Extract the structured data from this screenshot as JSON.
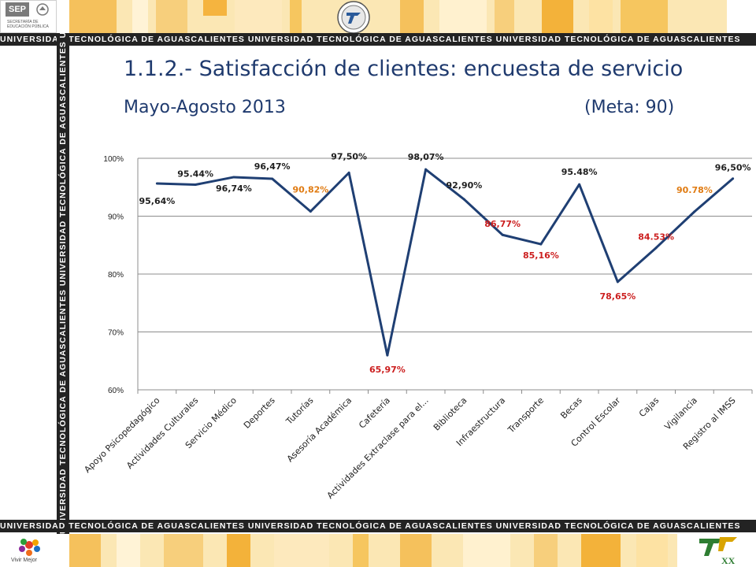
{
  "header": {
    "sep_label": "SEP",
    "sep_subtitle": "SECRETARÍA DE EDUCACIÓN PÚBLICA",
    "strip_text": "UNIVERSIDAD TECNOLÓGICA DE AGUASCALIENTES",
    "top_strip_repeated": "UNIVERSIDAD TECNOLÓGICA DE AGUASCALIENTES     UNIVERSIDAD TECNOLÓGICA DE AGUASCALIENTES     UNIVERSIDAD TECNOLÓGICA DE AGUASCALIENTES"
  },
  "slide": {
    "title": "1.1.2.- Satisfacción de clientes: encuesta de servicio",
    "subtitle": "Mayo-Agosto  2013",
    "goal": "(Meta: 90)"
  },
  "footer": {
    "vivir_label": "Vivir Mejor",
    "xx_label": "XX"
  },
  "colors": {
    "line": "#1f3f73",
    "text_dark": "#1f1f1f",
    "text_orange": "#e07b12",
    "text_red": "#cc1f1f",
    "title": "#1f3a6e",
    "strip": "#232323"
  },
  "chart_data": {
    "type": "line",
    "categories": [
      "Apoyo Psicopedagógico",
      "Actividades Culturales",
      "Servicio Médico",
      "Deportes",
      "Tutorías",
      "Asesoría Académica",
      "Cafetería",
      "Actividades Extraclase para el...",
      "Biblioteca",
      "Infraestructura",
      "Transporte",
      "Becas",
      "Control Escolar",
      "Cajas",
      "Vigilancia",
      "Registro al IMSS"
    ],
    "values": [
      95.64,
      95.44,
      96.74,
      96.47,
      90.82,
      97.5,
      65.97,
      98.07,
      92.9,
      86.77,
      85.16,
      95.48,
      78.65,
      84.53,
      90.78,
      96.5
    ],
    "labels": [
      "95,64%",
      "95.44%",
      "96,74%",
      "96,47%",
      "90,82%",
      "97,50%",
      "65,97%",
      "98,07%",
      "92,90%",
      "86,77%",
      "85,16%",
      "95.48%",
      "78,65%",
      "84.53%",
      "90.78%",
      "96,50%"
    ],
    "label_colors": [
      "dark",
      "dark",
      "dark",
      "dark",
      "orange",
      "dark",
      "red",
      "dark",
      "dark",
      "red",
      "red",
      "dark",
      "red",
      "red",
      "orange",
      "dark"
    ],
    "yticks": [
      "60%",
      "70%",
      "80%",
      "90%",
      "100%"
    ],
    "ylim": [
      60,
      100
    ],
    "grid": true
  }
}
